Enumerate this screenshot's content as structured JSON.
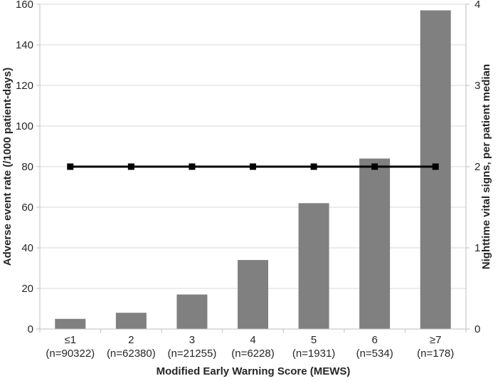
{
  "chart_data": {
    "type": "combo",
    "categories": [
      "≤1",
      "2",
      "3",
      "4",
      "5",
      "6",
      "≥7"
    ],
    "category_sublabels": [
      "(n=90322)",
      "(n=62380)",
      "(n=21255)",
      "(n=6228)",
      "(n=1931)",
      "(n=534)",
      "(n=178)"
    ],
    "series": [
      {
        "name": "Adverse event rate",
        "chart": "bar",
        "axis": "left",
        "color": "#808080",
        "values": [
          5,
          8,
          17,
          34,
          62,
          84,
          157
        ]
      },
      {
        "name": "Nighttime vital signs, per patient median",
        "chart": "line",
        "axis": "right",
        "color": "#000000",
        "marker": "square",
        "values": [
          2,
          2,
          2,
          2,
          2,
          2,
          2
        ]
      }
    ],
    "left_axis": {
      "title": "Adverse event rate (/1000 patient-days)",
      "min": 0,
      "max": 160,
      "step": 20
    },
    "right_axis": {
      "title": "Nighttime vital signs, per patient median",
      "min": 0,
      "max": 4,
      "step": 1
    },
    "xlabel": "Modified Early Warning Score (MEWS)",
    "grid": true,
    "legend": "none",
    "colors": {
      "gridline": "#d9d9d9",
      "axis_line": "#bfbfbf",
      "text": "#262626",
      "background": "#ffffff"
    }
  }
}
